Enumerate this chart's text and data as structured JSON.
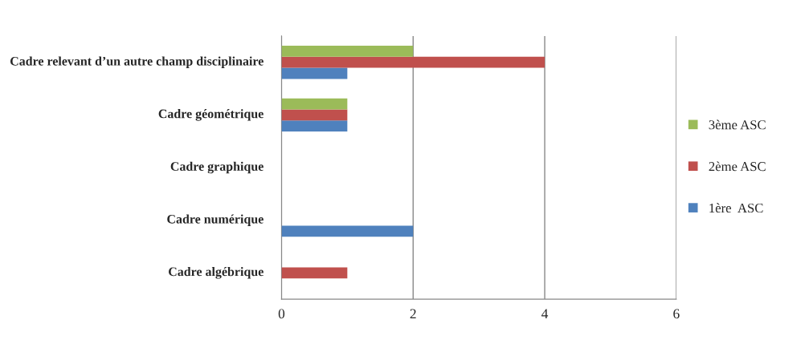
{
  "chart_data": {
    "type": "bar",
    "orientation": "horizontal",
    "categories": [
      "Cadre relevant d’un autre champ disciplinaire",
      "Cadre géométrique",
      "Cadre graphique",
      "Cadre numérique",
      "Cadre algébrique"
    ],
    "series": [
      {
        "name": "1ère  ASC",
        "color": "#4f81bd",
        "values": [
          1,
          1,
          0,
          2,
          0
        ]
      },
      {
        "name": "2ème ASC",
        "color": "#c0504d",
        "values": [
          4,
          1,
          0,
          0,
          1
        ]
      },
      {
        "name": "3ème ASC",
        "color": "#9bbb59",
        "values": [
          2,
          1,
          0,
          0,
          0
        ]
      }
    ],
    "xlim": [
      0,
      6
    ],
    "xticks": [
      0,
      2,
      4,
      6
    ],
    "grid": "x",
    "legend": "right"
  }
}
